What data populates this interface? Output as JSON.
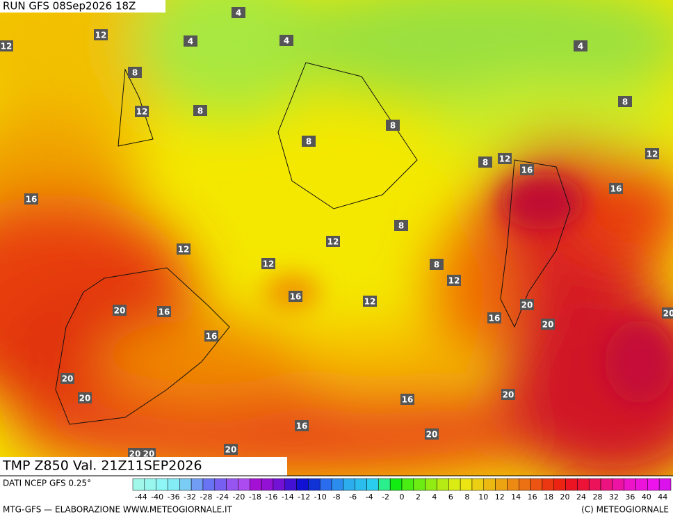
{
  "header": {
    "run": "RUN GFS 08Sep2026 18Z"
  },
  "map": {
    "contour_labels": [
      12,
      12,
      4,
      4,
      4,
      4,
      8,
      12,
      8,
      8,
      8,
      8,
      12,
      12,
      8,
      16,
      16,
      16,
      12,
      8,
      12,
      12,
      8,
      12,
      16,
      12,
      16,
      20,
      20,
      16,
      20,
      20,
      16,
      20,
      20,
      20,
      16,
      16,
      20,
      20,
      20,
      20
    ]
  },
  "footer": {
    "field": "TMP Z850 Val. 21Z11SEP2026",
    "source": "DATI NCEP GFS 0.25°",
    "credit": "MTG-GFS — ELABORAZIONE WWW.METEOGIORNALE.IT",
    "copyright": "(C) METEOGIORNALE",
    "scale_ticks": [
      -44,
      -40,
      -36,
      -32,
      -28,
      -24,
      -20,
      -18,
      -16,
      -14,
      -12,
      -10,
      -8,
      -6,
      -4,
      -2,
      0,
      2,
      4,
      6,
      8,
      10,
      12,
      14,
      16,
      18,
      20,
      24,
      28,
      32,
      36,
      40,
      44
    ]
  }
}
